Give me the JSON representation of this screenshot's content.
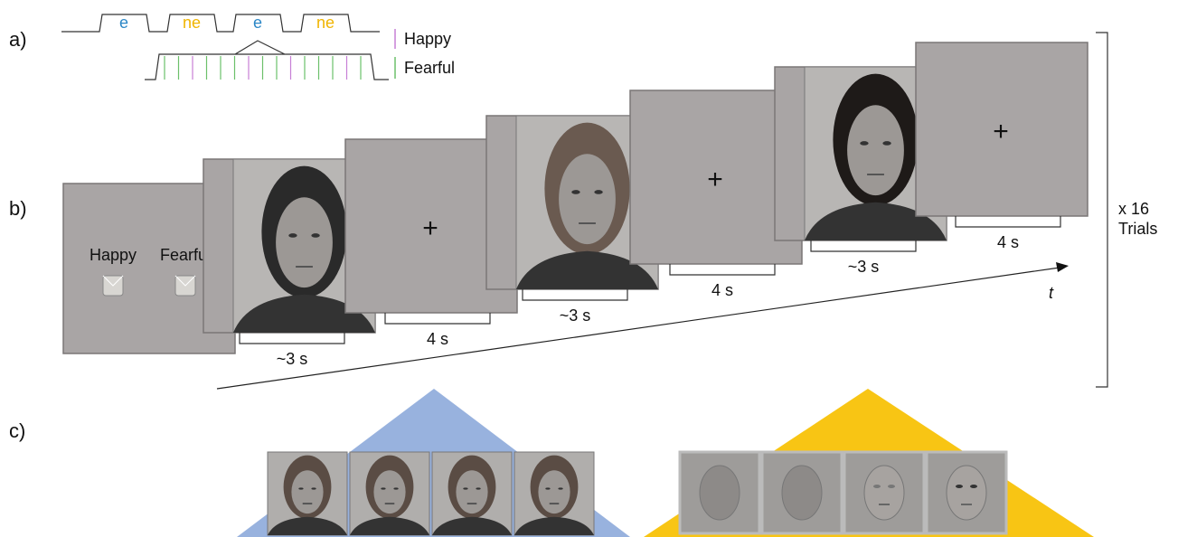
{
  "panel_a": {
    "label": "a)",
    "blocks": [
      "e",
      "ne",
      "e",
      "ne"
    ],
    "legend": [
      "Happy",
      "Fearful"
    ]
  },
  "panel_b": {
    "label": "b)",
    "response_options": [
      "Happy",
      "Fearful"
    ],
    "fixations": [
      "+",
      "+",
      "+"
    ],
    "durations": [
      "~3 s",
      "4 s",
      "~3 s",
      "4 s",
      "~3 s",
      "4 s"
    ],
    "time_axis": "t",
    "repeat": [
      "x 16",
      "Trials"
    ]
  },
  "panel_c": {
    "label": "c)"
  }
}
